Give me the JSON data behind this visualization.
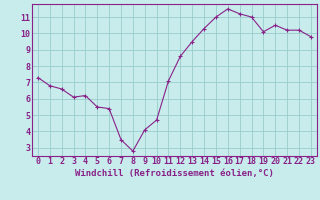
{
  "x": [
    0,
    1,
    2,
    3,
    4,
    5,
    6,
    7,
    8,
    9,
    10,
    11,
    12,
    13,
    14,
    15,
    16,
    17,
    18,
    19,
    20,
    21,
    22,
    23
  ],
  "y": [
    7.3,
    6.8,
    6.6,
    6.1,
    6.2,
    5.5,
    5.4,
    3.5,
    2.8,
    4.1,
    4.7,
    7.1,
    8.6,
    9.5,
    10.3,
    11.0,
    11.5,
    11.2,
    11.0,
    10.1,
    10.5,
    10.2,
    10.2,
    9.8
  ],
  "line_color": "#882288",
  "marker": "+",
  "bg_color": "#c8ecec",
  "grid_color": "#99cccc",
  "xlabel": "Windchill (Refroidissement éolien,°C)",
  "xlim": [
    -0.5,
    23.5
  ],
  "ylim": [
    2.5,
    11.8
  ],
  "yticks": [
    3,
    4,
    5,
    6,
    7,
    8,
    9,
    10,
    11
  ],
  "xticks": [
    0,
    1,
    2,
    3,
    4,
    5,
    6,
    7,
    8,
    9,
    10,
    11,
    12,
    13,
    14,
    15,
    16,
    17,
    18,
    19,
    20,
    21,
    22,
    23
  ],
  "tick_label_fontsize": 6.0,
  "xlabel_fontsize": 6.5,
  "line_color_spine": "#882288"
}
